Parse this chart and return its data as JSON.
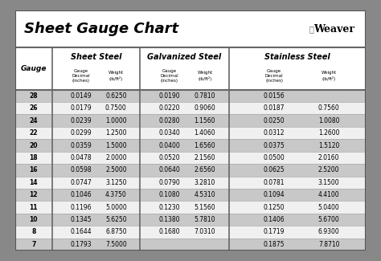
{
  "title": "Sheet Gauge Chart",
  "outer_bg": "#888888",
  "inner_bg": "#ffffff",
  "header_section_bg": "#ffffff",
  "col_header_bg": "#ffffff",
  "row_alt_dark": "#d0d0d0",
  "row_alt_light": "#f0f0f0",
  "border_color": "#555555",
  "gauges": [
    28,
    26,
    24,
    22,
    20,
    18,
    16,
    14,
    12,
    11,
    10,
    8,
    7
  ],
  "sheet_steel": {
    "decimal": [
      "0.0149",
      "0.0179",
      "0.0239",
      "0.0299",
      "0.0359",
      "0.0478",
      "0.0598",
      "0.0747",
      "0.1046",
      "0.1196",
      "0.1345",
      "0.1644",
      "0.1793"
    ],
    "weight": [
      "0.6250",
      "0.7500",
      "1.0000",
      "1.2500",
      "1.5000",
      "2.0000",
      "2.5000",
      "3.1250",
      "4.3750",
      "5.0000",
      "5.6250",
      "6.8750",
      "7.5000"
    ]
  },
  "galvanized_steel": {
    "decimal": [
      "0.0190",
      "0.0220",
      "0.0280",
      "0.0340",
      "0.0400",
      "0.0520",
      "0.0640",
      "0.0790",
      "0.1080",
      "0.1230",
      "0.1380",
      "0.1680",
      ""
    ],
    "weight": [
      "0.7810",
      "0.9060",
      "1.1560",
      "1.4060",
      "1.6560",
      "2.1560",
      "2.6560",
      "3.2810",
      "4.5310",
      "5.1560",
      "5.7810",
      "7.0310",
      ""
    ]
  },
  "stainless_steel": {
    "decimal": [
      "0.0156",
      "0.0187",
      "0.0250",
      "0.0312",
      "0.0375",
      "0.0500",
      "0.0625",
      "0.0781",
      "0.1094",
      "0.1250",
      "0.1406",
      "0.1719",
      "0.1875"
    ],
    "weight": [
      "",
      "0.7560",
      "1.0080",
      "1.2600",
      "1.5120",
      "2.0160",
      "2.5200",
      "3.1500",
      "4.4100",
      "5.0400",
      "5.6700",
      "6.9300",
      "7.8710"
    ]
  },
  "figsize": [
    4.74,
    3.25
  ],
  "dpi": 100
}
